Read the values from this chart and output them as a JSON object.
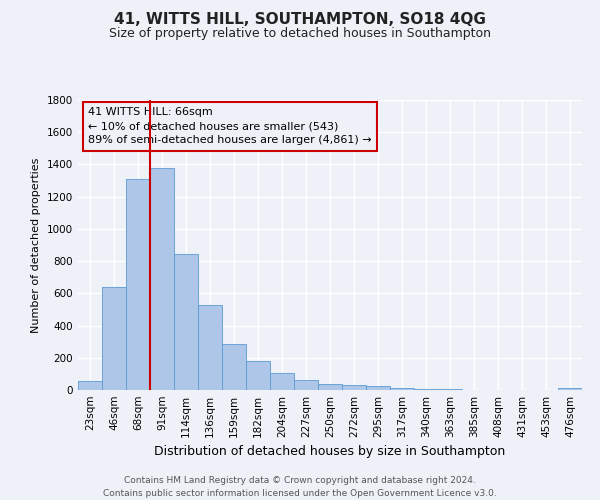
{
  "title": "41, WITTS HILL, SOUTHAMPTON, SO18 4QG",
  "subtitle": "Size of property relative to detached houses in Southampton",
  "xlabel": "Distribution of detached houses by size in Southampton",
  "ylabel": "Number of detached properties",
  "categories": [
    "23sqm",
    "46sqm",
    "68sqm",
    "91sqm",
    "114sqm",
    "136sqm",
    "159sqm",
    "182sqm",
    "204sqm",
    "227sqm",
    "250sqm",
    "272sqm",
    "295sqm",
    "317sqm",
    "340sqm",
    "363sqm",
    "385sqm",
    "408sqm",
    "431sqm",
    "453sqm",
    "476sqm"
  ],
  "bar_heights": [
    55,
    640,
    1310,
    1375,
    845,
    530,
    285,
    180,
    105,
    65,
    40,
    30,
    22,
    12,
    8,
    5,
    3,
    2,
    1,
    1,
    10
  ],
  "bar_color": "#aec6e8",
  "bar_edge_color": "#5b9bd5",
  "vline_color": "#cc0000",
  "vline_x_idx": 2,
  "ylim": [
    0,
    1800
  ],
  "yticks": [
    0,
    200,
    400,
    600,
    800,
    1000,
    1200,
    1400,
    1600,
    1800
  ],
  "annotation_title": "41 WITTS HILL: 66sqm",
  "annotation_line1": "← 10% of detached houses are smaller (543)",
  "annotation_line2": "89% of semi-detached houses are larger (4,861) →",
  "annotation_box_edge_color": "#cc0000",
  "footer_line1": "Contains HM Land Registry data © Crown copyright and database right 2024.",
  "footer_line2": "Contains public sector information licensed under the Open Government Licence v3.0.",
  "bg_color": "#eef2f8",
  "grid_color": "#ffffff",
  "title_fontsize": 11,
  "subtitle_fontsize": 9,
  "ylabel_fontsize": 8,
  "xlabel_fontsize": 9,
  "tick_fontsize": 7.5,
  "footer_fontsize": 6.5
}
